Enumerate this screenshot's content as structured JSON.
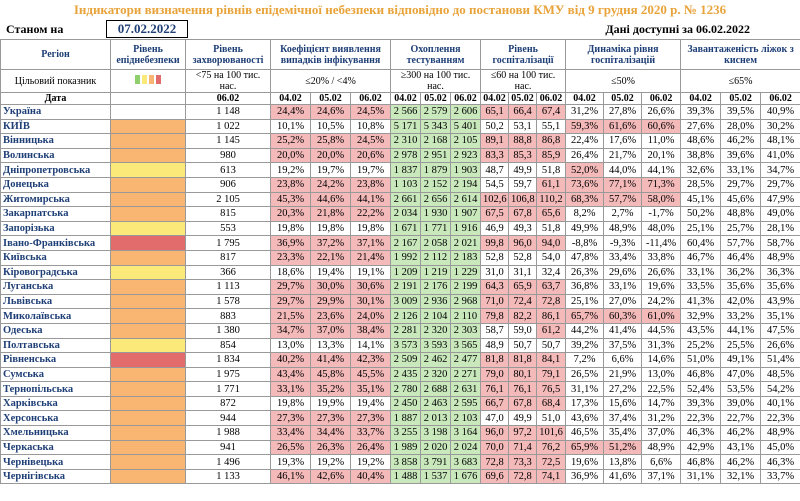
{
  "header": {
    "title": "Індикатори визначення рівнів епідемічної небезпеки відповідно до постанови КМУ від 9 грудня 2020 р. № 1236",
    "status_label": "Станом на",
    "status_date": "07.02.2022",
    "available": "Дані доступні за 06.02.2022"
  },
  "columns": {
    "region": "Регіон",
    "risk": "Рівень епіднебезпеки",
    "rate": "Рівень захворюваності",
    "positivity": "Коефіцієнт виявлення випадків інфікування",
    "testing": "Охоплення тестуванням",
    "hospitalization": "Рівень госпіталізації",
    "dynamics": "Динаміка рівня госпіталізацій",
    "occupancy": "Завантаженість ліжок з киснем"
  },
  "targets": {
    "label": "Цільовий показник",
    "rate": "<75 на 100 тис. нас.",
    "positivity": "≤20% / <4%",
    "testing": "≥300 на 100 тис. нас.",
    "hospitalization": "≤60 на 100 тис. нас.",
    "dynamics": "≤50%",
    "occupancy": "≤65%"
  },
  "dates": {
    "label": "Дата",
    "rate": "06.02",
    "days": [
      "04.02",
      "05.02",
      "06.02"
    ]
  },
  "highlight": {
    "positivity": {
      "min": 20,
      "color": "#f4b9b9"
    },
    "hospitalization": {
      "above": 60,
      "color": "#f4b9b9"
    },
    "dynamics": {
      "above": 50,
      "color": "#f4b9b9"
    },
    "testing": {
      "color": "#c9e9bd"
    }
  },
  "rows": [
    {
      "region": "Україна",
      "rate": "1 148",
      "positivity": [
        "24,4%",
        "24,6%",
        "24,5%"
      ],
      "testing": [
        "2 566",
        "2 579",
        "2 606"
      ],
      "hospitalization": [
        "65,1",
        "66,4",
        "67,4"
      ],
      "dynamics": [
        "31,2%",
        "27,8%",
        "26,6%"
      ],
      "occupancy": [
        "39,3%",
        "39,5%",
        "40,9%"
      ]
    },
    {
      "region": "КИЇВ",
      "risk": "#f9b572",
      "rate": "1 022",
      "positivity": [
        "10,1%",
        "10,5%",
        "10,8%"
      ],
      "testing": [
        "5 171",
        "5 343",
        "5 401"
      ],
      "hospitalization": [
        "50,2",
        "53,1",
        "55,1"
      ],
      "dynamics": [
        "59,3%",
        "61,6%",
        "60,6%"
      ],
      "occupancy": [
        "27,6%",
        "28,0%",
        "30,2%"
      ]
    },
    {
      "region": "Вінницька",
      "risk": "#f9b572",
      "rate": "1 145",
      "positivity": [
        "25,2%",
        "25,8%",
        "24,5%"
      ],
      "testing": [
        "2 310",
        "2 168",
        "2 105"
      ],
      "hospitalization": [
        "89,1",
        "88,8",
        "86,8"
      ],
      "dynamics": [
        "22,4%",
        "17,6%",
        "11,0%"
      ],
      "occupancy": [
        "48,6%",
        "46,2%",
        "48,1%"
      ]
    },
    {
      "region": "Волинська",
      "risk": "#f9b572",
      "rate": "980",
      "positivity": [
        "20,0%",
        "20,0%",
        "20,6%"
      ],
      "testing": [
        "2 978",
        "2 951",
        "2 923"
      ],
      "hospitalization": [
        "83,3",
        "85,3",
        "85,9"
      ],
      "dynamics": [
        "26,4%",
        "21,7%",
        "20,1%"
      ],
      "occupancy": [
        "38,8%",
        "39,6%",
        "41,0%"
      ]
    },
    {
      "region": "Дніпропетровська",
      "risk": "#fbe97a",
      "rate": "613",
      "positivity": [
        "19,2%",
        "19,7%",
        "19,7%"
      ],
      "testing": [
        "1 837",
        "1 879",
        "1 903"
      ],
      "hospitalization": [
        "48,7",
        "49,9",
        "51,8"
      ],
      "dynamics": [
        "52,0%",
        "44,0%",
        "44,1%"
      ],
      "occupancy": [
        "32,6%",
        "33,1%",
        "34,7%"
      ]
    },
    {
      "region": "Донецька",
      "risk": "#f9b572",
      "rate": "906",
      "positivity": [
        "23,8%",
        "24,2%",
        "23,8%"
      ],
      "testing": [
        "1 103",
        "2 152",
        "2 194"
      ],
      "hospitalization": [
        "54,5",
        "59,7",
        "61,1"
      ],
      "dynamics": [
        "73,6%",
        "77,1%",
        "71,3%"
      ],
      "occupancy": [
        "28,5%",
        "29,7%",
        "29,7%"
      ]
    },
    {
      "region": "Житомирська",
      "risk": "#f9b572",
      "rate": "2 105",
      "positivity": [
        "45,3%",
        "44,6%",
        "44,1%"
      ],
      "testing": [
        "2 661",
        "2 656",
        "2 614"
      ],
      "hospitalization": [
        "102,6",
        "106,8",
        "110,2"
      ],
      "dynamics": [
        "68,3%",
        "57,7%",
        "58,0%"
      ],
      "occupancy": [
        "45,1%",
        "45,6%",
        "47,9%"
      ]
    },
    {
      "region": "Закарпатська",
      "risk": "#f9b572",
      "rate": "815",
      "positivity": [
        "20,3%",
        "21,8%",
        "22,2%"
      ],
      "testing": [
        "2 034",
        "1 930",
        "1 907"
      ],
      "hospitalization": [
        "67,5",
        "67,8",
        "65,6"
      ],
      "dynamics": [
        "8,2%",
        "2,7%",
        "-1,7%"
      ],
      "occupancy": [
        "50,2%",
        "48,8%",
        "49,0%"
      ]
    },
    {
      "region": "Запорізька",
      "risk": "#fbe97a",
      "rate": "553",
      "positivity": [
        "19,8%",
        "19,8%",
        "19,8%"
      ],
      "testing": [
        "1 671",
        "1 771",
        "1 916"
      ],
      "hospitalization": [
        "46,9",
        "49,3",
        "51,8"
      ],
      "dynamics": [
        "49,9%",
        "48,9%",
        "48,0%"
      ],
      "occupancy": [
        "25,1%",
        "25,7%",
        "28,1%"
      ]
    },
    {
      "region": "Івано-Франківська",
      "risk": "#e26b6b",
      "rate": "1 795",
      "positivity": [
        "36,9%",
        "37,2%",
        "37,1%"
      ],
      "testing": [
        "2 167",
        "2 058",
        "2 021"
      ],
      "hospitalization": [
        "99,8",
        "96,0",
        "94,0"
      ],
      "dynamics": [
        "-8,8%",
        "-9,3%",
        "-11,4%"
      ],
      "occupancy": [
        "60,4%",
        "57,7%",
        "58,7%"
      ]
    },
    {
      "region": "Київська",
      "risk": "#f9b572",
      "rate": "817",
      "positivity": [
        "23,3%",
        "22,1%",
        "21,4%"
      ],
      "testing": [
        "1 992",
        "2 112",
        "2 183"
      ],
      "hospitalization": [
        "52,8",
        "52,8",
        "54,0"
      ],
      "dynamics": [
        "47,8%",
        "33,4%",
        "33,8%"
      ],
      "occupancy": [
        "46,7%",
        "46,4%",
        "48,9%"
      ]
    },
    {
      "region": "Кіровоградська",
      "risk": "#fbe97a",
      "rate": "366",
      "positivity": [
        "18,6%",
        "19,4%",
        "19,1%"
      ],
      "testing": [
        "1 209",
        "1 219",
        "1 229"
      ],
      "hospitalization": [
        "31,0",
        "31,1",
        "32,4"
      ],
      "dynamics": [
        "26,3%",
        "29,6%",
        "26,6%"
      ],
      "occupancy": [
        "33,1%",
        "36,2%",
        "36,3%"
      ]
    },
    {
      "region": "Луганська",
      "risk": "#f9b572",
      "rate": "1 113",
      "positivity": [
        "29,7%",
        "30,0%",
        "30,6%"
      ],
      "testing": [
        "2 191",
        "2 176",
        "2 199"
      ],
      "hospitalization": [
        "64,3",
        "65,9",
        "63,7"
      ],
      "dynamics": [
        "36,8%",
        "33,1%",
        "19,6%"
      ],
      "occupancy": [
        "33,5%",
        "35,6%",
        "35,6%"
      ]
    },
    {
      "region": "Львівська",
      "risk": "#f9b572",
      "rate": "1 578",
      "positivity": [
        "29,7%",
        "29,9%",
        "30,1%"
      ],
      "testing": [
        "3 009",
        "2 936",
        "2 968"
      ],
      "hospitalization": [
        "71,0",
        "72,4",
        "72,8"
      ],
      "dynamics": [
        "25,1%",
        "27,0%",
        "24,2%"
      ],
      "occupancy": [
        "41,3%",
        "42,0%",
        "43,9%"
      ]
    },
    {
      "region": "Миколаївська",
      "risk": "#f9b572",
      "rate": "883",
      "positivity": [
        "21,5%",
        "23,6%",
        "24,0%"
      ],
      "testing": [
        "2 126",
        "2 104",
        "2 110"
      ],
      "hospitalization": [
        "79,8",
        "82,2",
        "86,1"
      ],
      "dynamics": [
        "65,7%",
        "60,3%",
        "61,0%"
      ],
      "occupancy": [
        "32,9%",
        "33,2%",
        "35,1%"
      ]
    },
    {
      "region": "Одеська",
      "risk": "#f9b572",
      "rate": "1 380",
      "positivity": [
        "34,7%",
        "37,0%",
        "38,4%"
      ],
      "testing": [
        "2 281",
        "2 320",
        "2 303"
      ],
      "hospitalization": [
        "58,7",
        "59,0",
        "61,2"
      ],
      "dynamics": [
        "44,2%",
        "41,4%",
        "44,5%"
      ],
      "occupancy": [
        "43,5%",
        "44,1%",
        "47,5%"
      ]
    },
    {
      "region": "Полтавська",
      "risk": "#fbe97a",
      "rate": "854",
      "positivity": [
        "13,0%",
        "13,3%",
        "14,1%"
      ],
      "testing": [
        "3 573",
        "3 593",
        "3 565"
      ],
      "hospitalization": [
        "48,9",
        "50,7",
        "50,7"
      ],
      "dynamics": [
        "39,2%",
        "37,5%",
        "31,3%"
      ],
      "occupancy": [
        "25,2%",
        "25,5%",
        "26,6%"
      ]
    },
    {
      "region": "Рівненська",
      "risk": "#e26b6b",
      "rate": "1 834",
      "positivity": [
        "40,2%",
        "41,4%",
        "42,3%"
      ],
      "testing": [
        "2 509",
        "2 462",
        "2 477"
      ],
      "hospitalization": [
        "81,8",
        "81,8",
        "84,1"
      ],
      "dynamics": [
        "7,2%",
        "6,6%",
        "14,6%"
      ],
      "occupancy": [
        "51,0%",
        "49,1%",
        "51,4%"
      ]
    },
    {
      "region": "Сумська",
      "risk": "#f9b572",
      "rate": "1 975",
      "positivity": [
        "43,4%",
        "45,8%",
        "45,5%"
      ],
      "testing": [
        "2 435",
        "2 320",
        "2 271"
      ],
      "hospitalization": [
        "79,0",
        "80,1",
        "79,1"
      ],
      "dynamics": [
        "26,5%",
        "21,9%",
        "13,0%"
      ],
      "occupancy": [
        "46,8%",
        "47,0%",
        "48,5%"
      ]
    },
    {
      "region": "Тернопільська",
      "risk": "#f9b572",
      "rate": "1 771",
      "positivity": [
        "33,1%",
        "35,2%",
        "35,1%"
      ],
      "testing": [
        "2 780",
        "2 688",
        "2 631"
      ],
      "hospitalization": [
        "76,1",
        "76,1",
        "76,5"
      ],
      "dynamics": [
        "31,1%",
        "27,2%",
        "22,5%"
      ],
      "occupancy": [
        "52,4%",
        "53,5%",
        "54,2%"
      ]
    },
    {
      "region": "Харківська",
      "risk": "#f9b572",
      "rate": "872",
      "positivity": [
        "19,8%",
        "19,9%",
        "19,4%"
      ],
      "testing": [
        "2 450",
        "2 463",
        "2 595"
      ],
      "hospitalization": [
        "66,7",
        "67,8",
        "68,4"
      ],
      "dynamics": [
        "17,3%",
        "15,6%",
        "14,7%"
      ],
      "occupancy": [
        "39,3%",
        "39,0%",
        "40,1%"
      ]
    },
    {
      "region": "Херсонська",
      "risk": "#f9b572",
      "rate": "944",
      "positivity": [
        "27,3%",
        "27,3%",
        "27,3%"
      ],
      "testing": [
        "1 887",
        "2 013",
        "2 103"
      ],
      "hospitalization": [
        "47,0",
        "49,9",
        "51,0"
      ],
      "dynamics": [
        "43,6%",
        "37,4%",
        "31,2%"
      ],
      "occupancy": [
        "22,3%",
        "22,7%",
        "22,3%"
      ]
    },
    {
      "region": "Хмельницька",
      "risk": "#f9b572",
      "rate": "1 988",
      "positivity": [
        "33,4%",
        "34,4%",
        "33,7%"
      ],
      "testing": [
        "3 255",
        "3 198",
        "3 164"
      ],
      "hospitalization": [
        "96,0",
        "97,2",
        "101,6"
      ],
      "dynamics": [
        "46,5%",
        "35,4%",
        "37,0%"
      ],
      "occupancy": [
        "46,3%",
        "46,2%",
        "48,9%"
      ]
    },
    {
      "region": "Черкаська",
      "risk": "#f9b572",
      "rate": "941",
      "positivity": [
        "26,5%",
        "26,3%",
        "26,4%"
      ],
      "testing": [
        "1 989",
        "2 020",
        "2 024"
      ],
      "hospitalization": [
        "70,0",
        "71,4",
        "76,2"
      ],
      "dynamics": [
        "65,9%",
        "51,2%",
        "48,9%"
      ],
      "occupancy": [
        "42,9%",
        "43,1%",
        "45,0%"
      ]
    },
    {
      "region": "Чернівецька",
      "risk": "#f9b572",
      "rate": "1 496",
      "positivity": [
        "19,3%",
        "19,2%",
        "19,2%"
      ],
      "testing": [
        "3 858",
        "3 791",
        "3 683"
      ],
      "hospitalization": [
        "72,8",
        "73,3",
        "72,5"
      ],
      "dynamics": [
        "19,6%",
        "13,8%",
        "6,6%"
      ],
      "occupancy": [
        "46,8%",
        "46,2%",
        "46,3%"
      ]
    },
    {
      "region": "Чернігівська",
      "risk": "#f9b572",
      "rate": "1 133",
      "positivity": [
        "46,1%",
        "42,6%",
        "40,4%"
      ],
      "testing": [
        "1 488",
        "1 537",
        "1 676"
      ],
      "hospitalization": [
        "69,6",
        "72,8",
        "74,1"
      ],
      "dynamics": [
        "36,9%",
        "41,6%",
        "37,1%"
      ],
      "occupancy": [
        "31,1%",
        "32,1%",
        "33,7%"
      ]
    }
  ]
}
